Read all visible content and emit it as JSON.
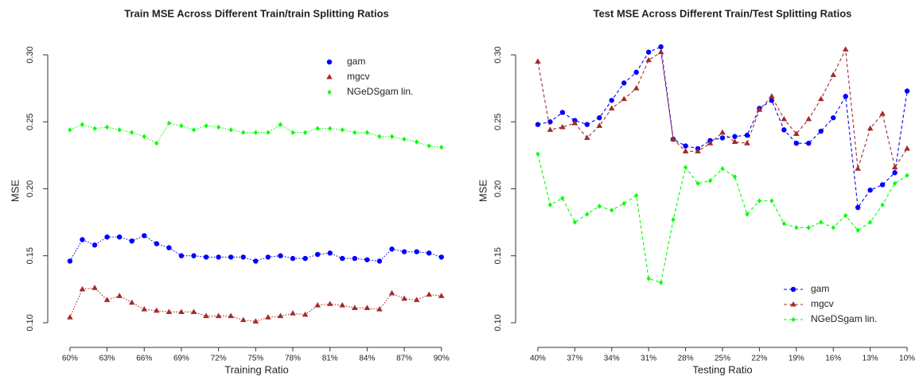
{
  "chart_data": [
    {
      "type": "line",
      "title": "Train MSE Across Different Train/train Splitting Ratios",
      "x_label": "Training Ratio",
      "y_label": "MSE",
      "x": [
        60,
        61,
        62,
        63,
        64,
        65,
        66,
        67,
        68,
        69,
        70,
        71,
        72,
        73,
        74,
        75,
        76,
        77,
        78,
        79,
        80,
        81,
        82,
        83,
        84,
        85,
        86,
        87,
        88,
        89,
        90
      ],
      "xlim": [
        58.85,
        91.3
      ],
      "ylim": [
        0.0798,
        0.3172
      ],
      "xticks": [
        {
          "value": 60,
          "label": "60%"
        },
        {
          "value": 63,
          "label": "63%"
        },
        {
          "value": 66,
          "label": "66%"
        },
        {
          "value": 69,
          "label": "69%"
        },
        {
          "value": 72,
          "label": "72%"
        },
        {
          "value": 75,
          "label": "75%"
        },
        {
          "value": 78,
          "label": "78%"
        },
        {
          "value": 81,
          "label": "81%"
        },
        {
          "value": 84,
          "label": "84%"
        },
        {
          "value": 87,
          "label": "87%"
        },
        {
          "value": 90,
          "label": "90%"
        }
      ],
      "yticks": [
        {
          "value": 0.1,
          "label": "0.10"
        },
        0.15,
        {
          "value": 0.2,
          "label": "0.20"
        },
        0.25,
        {
          "value": 0.3,
          "label": "0.30"
        }
      ],
      "legend": "top-right",
      "line_style": "dotted",
      "series": [
        {
          "name": "gam",
          "color": "#0000ff",
          "marker": "circle",
          "values": [
            0.146,
            0.162,
            0.158,
            0.164,
            0.164,
            0.161,
            0.165,
            0.159,
            0.156,
            0.15,
            0.15,
            0.149,
            0.149,
            0.149,
            0.149,
            0.146,
            0.149,
            0.15,
            0.148,
            0.148,
            0.151,
            0.152,
            0.148,
            0.148,
            0.147,
            0.146,
            0.155,
            0.153,
            0.153,
            0.152,
            0.149
          ]
        },
        {
          "name": "mgcv",
          "color": "#a52a2a",
          "marker": "triangle",
          "values": [
            0.104,
            0.125,
            0.126,
            0.117,
            0.12,
            0.115,
            0.11,
            0.109,
            0.108,
            0.108,
            0.108,
            0.105,
            0.105,
            0.105,
            0.102,
            0.101,
            0.104,
            0.105,
            0.107,
            0.106,
            0.113,
            0.114,
            0.113,
            0.111,
            0.111,
            0.11,
            0.122,
            0.118,
            0.117,
            0.121,
            0.12
          ]
        },
        {
          "name": "NGeDSgam lin.",
          "color": "#00ff00",
          "marker": "diamond",
          "values": [
            0.244,
            0.248,
            0.245,
            0.246,
            0.244,
            0.242,
            0.239,
            0.234,
            0.249,
            0.247,
            0.244,
            0.247,
            0.246,
            0.244,
            0.242,
            0.242,
            0.242,
            0.248,
            0.242,
            0.242,
            0.245,
            0.245,
            0.244,
            0.242,
            0.242,
            0.239,
            0.239,
            0.237,
            0.235,
            0.232,
            0.231
          ]
        }
      ]
    },
    {
      "type": "line",
      "title": "Test MSE Across Different Train/Test Splitting Ratios",
      "x_label": "Testing Ratio",
      "y_label": "MSE",
      "x": [
        40,
        39,
        38,
        37,
        36,
        35,
        34,
        33,
        32,
        31,
        30,
        29,
        28,
        27,
        26,
        25,
        24,
        23,
        22,
        21,
        20,
        19,
        18,
        17,
        16,
        15,
        14,
        13,
        12,
        11,
        10
      ],
      "xlim": [
        41.16,
        8.84
      ],
      "ylim": [
        0.0798,
        0.3172
      ],
      "xticks": [
        {
          "value": 40,
          "label": "40%"
        },
        {
          "value": 37,
          "label": "37%"
        },
        {
          "value": 34,
          "label": "34%"
        },
        {
          "value": 31,
          "label": "31%"
        },
        {
          "value": 28,
          "label": "28%"
        },
        {
          "value": 25,
          "label": "25%"
        },
        {
          "value": 22,
          "label": "22%"
        },
        {
          "value": 19,
          "label": "19%"
        },
        {
          "value": 16,
          "label": "16%"
        },
        {
          "value": 13,
          "label": "13%"
        },
        {
          "value": 10,
          "label": "10%"
        }
      ],
      "yticks": [
        {
          "value": 0.1,
          "label": "0.10"
        },
        0.15,
        {
          "value": 0.2,
          "label": "0.20"
        },
        0.25,
        {
          "value": 0.3,
          "label": "0.30"
        }
      ],
      "legend": "bottom-right",
      "line_style": "dashed",
      "series": [
        {
          "name": "gam",
          "color": "#0000ff",
          "marker": "circle",
          "values": [
            0.248,
            0.25,
            0.257,
            0.251,
            0.248,
            0.253,
            0.266,
            0.279,
            0.287,
            0.302,
            0.306,
            0.237,
            0.232,
            0.23,
            0.236,
            0.238,
            0.239,
            0.24,
            0.26,
            0.266,
            0.244,
            0.234,
            0.234,
            0.243,
            0.253,
            0.269,
            0.186,
            0.199,
            0.203,
            0.212,
            0.273
          ]
        },
        {
          "name": "mgcv",
          "color": "#a52a2a",
          "marker": "triangle",
          "values": [
            0.295,
            0.244,
            0.246,
            0.249,
            0.238,
            0.247,
            0.26,
            0.267,
            0.275,
            0.296,
            0.302,
            0.237,
            0.228,
            0.228,
            0.234,
            0.242,
            0.235,
            0.234,
            0.259,
            0.269,
            0.252,
            0.241,
            0.252,
            0.267,
            0.285,
            0.304,
            0.215,
            0.245,
            0.256,
            0.216,
            0.23
          ]
        },
        {
          "name": "NGeDSgam lin.",
          "color": "#00ff00",
          "marker": "diamond",
          "values": [
            0.226,
            0.188,
            0.193,
            0.175,
            0.181,
            0.187,
            0.184,
            0.189,
            0.195,
            0.133,
            0.13,
            0.177,
            0.216,
            0.204,
            0.206,
            0.215,
            0.209,
            0.181,
            0.191,
            0.191,
            0.174,
            0.171,
            0.171,
            0.175,
            0.171,
            0.18,
            0.169,
            0.175,
            0.188,
            0.204,
            0.21
          ]
        }
      ]
    }
  ]
}
